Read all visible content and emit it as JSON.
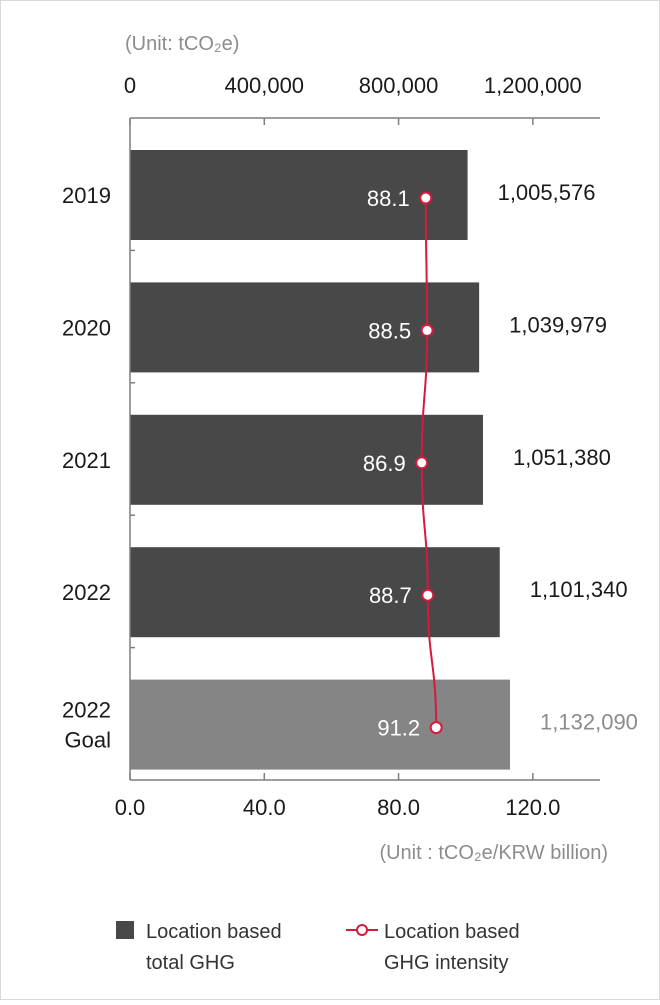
{
  "chart_data": {
    "type": "bar",
    "orientation": "horizontal",
    "categories": [
      [
        "2019"
      ],
      [
        "2020"
      ],
      [
        "2021"
      ],
      [
        "2022"
      ],
      [
        "2022",
        "Goal"
      ]
    ],
    "top_axis": {
      "unit_label": "(Unit: tCO₂e)",
      "ticks": [
        0,
        400000,
        800000,
        1200000
      ],
      "tick_labels": [
        "0",
        "400,000",
        "800,000",
        "1,200,000"
      ],
      "range": [
        0,
        1400000
      ]
    },
    "bottom_axis": {
      "unit_label": "(Unit :  tCO₂e/KRW billion)",
      "ticks": [
        0,
        40,
        80,
        120
      ],
      "tick_labels": [
        "0.0",
        "40.0",
        "80.0",
        "120.0"
      ],
      "range": [
        0,
        140
      ]
    },
    "series": [
      {
        "name": "Location based total GHG",
        "legend_lines": [
          "Location based",
          "total GHG"
        ],
        "type": "bar",
        "axis": "top",
        "values": [
          1005576,
          1039979,
          1051380,
          1101340,
          1132090
        ],
        "labels": [
          "1,005,576",
          "1,039,979",
          "1,051,380",
          "1,101,340",
          "1,132,090"
        ]
      },
      {
        "name": "Location based GHG intensity",
        "legend_lines": [
          "Location based",
          "GHG intensity"
        ],
        "type": "line",
        "axis": "bottom",
        "values": [
          88.1,
          88.5,
          86.9,
          88.7,
          91.2
        ],
        "labels": [
          "88.1",
          "88.5",
          "86.9",
          "88.7",
          "91.2"
        ]
      }
    ],
    "colors": {
      "bar": "#484848",
      "bar_goal": "#858585",
      "line": "#d7193c",
      "axis": "#7f7f7f",
      "text": "#1a1a1a",
      "unit_text": "#8c8c8c",
      "goal_label": "#8c8c8c",
      "inner_label": "#ffffff"
    },
    "grid": false,
    "legend_position": "bottom"
  }
}
